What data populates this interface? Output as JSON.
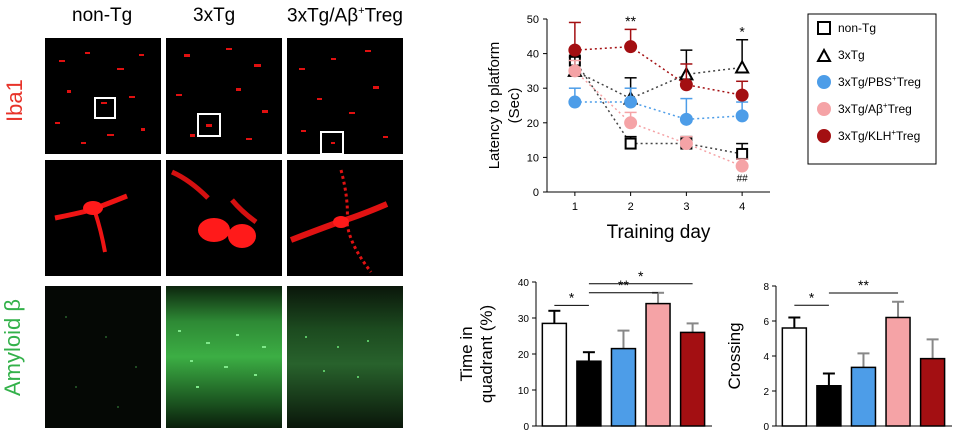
{
  "figure": {
    "columns": [
      "non-Tg",
      "3xTg",
      "3xTg/Aβ",
      "Treg"
    ],
    "columns_sup": [
      "",
      "",
      "+",
      ""
    ],
    "row_labels": {
      "iba1": "Iba1",
      "amyloid": "Amyloid β"
    },
    "colors": {
      "iba1": "#e8332a",
      "amyloid": "#33b14a"
    }
  },
  "chart_data": [
    {
      "type": "line",
      "xlabel": "Training day",
      "ylabel": [
        "Latency to platform",
        "(Sec)"
      ],
      "x": [
        1,
        2,
        3,
        4
      ],
      "xlim": [
        0.5,
        4.5
      ],
      "ylim": [
        0,
        50
      ],
      "yticks": [
        0,
        10,
        20,
        30,
        40,
        50
      ],
      "legend_position": "right",
      "series": [
        {
          "name": "non-Tg",
          "name_sup": "",
          "marker": "square",
          "color": "#000000",
          "fill": "#ffffff",
          "values": [
            38,
            14,
            14,
            11
          ],
          "err": [
            3,
            2,
            2,
            3
          ]
        },
        {
          "name": "3xTg",
          "name_sup": "",
          "marker": "triangle",
          "color": "#000000",
          "fill": "#ffffff",
          "values": [
            35,
            27,
            34,
            36
          ],
          "err": [
            4,
            6,
            7,
            8
          ]
        },
        {
          "name": "3xTg/PBS",
          "name_sup": "+",
          "name_tail": "Treg",
          "marker": "circle",
          "color": "#4d9de8",
          "fill": "#4d9de8",
          "values": [
            26,
            26,
            21,
            22
          ],
          "err": [
            4,
            4,
            6,
            4
          ]
        },
        {
          "name": "3xTg/Aβ",
          "name_sup": "+",
          "name_tail": "Treg",
          "marker": "circle",
          "color": "#f5a3a6",
          "fill": "#f5a3a6",
          "values": [
            35,
            20,
            14,
            7.5
          ],
          "err": [
            3,
            3,
            2,
            2
          ]
        },
        {
          "name": "3xTg/KLH",
          "name_sup": "+",
          "name_tail": "Treg",
          "marker": "circle",
          "color": "#a30f12",
          "fill": "#a30f12",
          "values": [
            41,
            42,
            31,
            28
          ],
          "err": [
            8,
            5,
            6,
            4
          ]
        }
      ],
      "annotations": [
        {
          "x": 2,
          "y": 48,
          "text": "**"
        },
        {
          "x": 4,
          "y": 45,
          "text": "*"
        },
        {
          "x": 4,
          "y": 3,
          "text": "##"
        }
      ]
    },
    {
      "type": "bar",
      "ylabel": [
        "Time in",
        "quadrant (%)"
      ],
      "ylim": [
        0,
        40
      ],
      "yticks": [
        0,
        10,
        20,
        30,
        40
      ],
      "values": [
        28.5,
        18,
        21.5,
        34,
        26
      ],
      "err": [
        3.5,
        2.5,
        5,
        3,
        2.5
      ],
      "colors": [
        "#ffffff",
        "#000000",
        "#4d9de8",
        "#f5a3a6",
        "#a30f12"
      ],
      "errcolors": [
        "#000000",
        "#000000",
        "#888888",
        "#888888",
        "#888888"
      ],
      "significance": [
        {
          "from": 0,
          "to": 1,
          "y": 33.5,
          "text": "*"
        },
        {
          "from": 1,
          "to": 3,
          "y": 37,
          "text": "**"
        },
        {
          "from": 1,
          "to": 4,
          "y": 39.5,
          "text": "*"
        }
      ]
    },
    {
      "type": "bar",
      "ylabel": [
        "Crossing"
      ],
      "ylim": [
        0,
        8
      ],
      "yticks": [
        0,
        2,
        4,
        6,
        8
      ],
      "values": [
        5.6,
        2.3,
        3.35,
        6.2,
        3.85
      ],
      "err": [
        0.6,
        0.7,
        0.8,
        0.9,
        1.1
      ],
      "colors": [
        "#ffffff",
        "#000000",
        "#4d9de8",
        "#f5a3a6",
        "#a30f12"
      ],
      "errcolors": [
        "#000000",
        "#000000",
        "#888888",
        "#888888",
        "#888888"
      ],
      "significance": [
        {
          "from": 0,
          "to": 1,
          "y": 6.9,
          "text": "*"
        },
        {
          "from": 1,
          "to": 3,
          "y": 7.6,
          "text": "**"
        }
      ]
    }
  ]
}
